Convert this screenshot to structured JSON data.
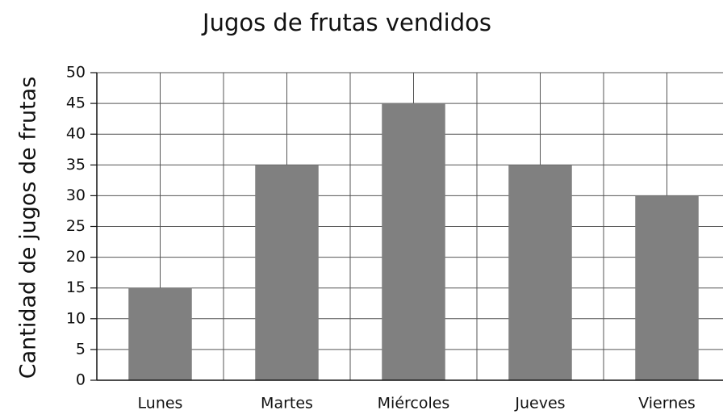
{
  "chart_data": {
    "type": "bar",
    "title": "Jugos de frutas vendidos",
    "y_label": "Cantidad de jugos de frutas",
    "categories": [
      "Lunes",
      "Martes",
      "Miércoles",
      "Jueves",
      "Viernes"
    ],
    "values": [
      15,
      35,
      45,
      35,
      30
    ],
    "color": "#808080",
    "ylim": [
      0,
      50
    ],
    "yticks": [
      0,
      5,
      10,
      15,
      20,
      25,
      30,
      35,
      40,
      45,
      50
    ],
    "grid": true
  }
}
